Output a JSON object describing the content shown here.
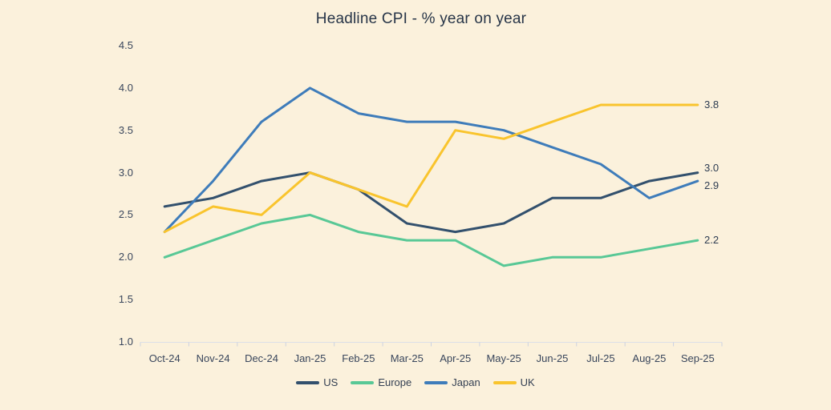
{
  "title": "Headline CPI - % year on year",
  "colors": {
    "background": "#fbf1dc",
    "title_text": "#273548",
    "axis_text": "#39465c",
    "axis_line": "#dcdfe8",
    "tick_line": "#ccd2e0",
    "end_label_text": "#2e3d52",
    "us": "#32506d",
    "europe": "#58c896",
    "japan": "#3e7cba",
    "uk": "#f9c42d"
  },
  "chart_data": {
    "type": "line",
    "title": "Headline CPI - % year on year",
    "x": [
      "Oct-24",
      "Nov-24",
      "Dec-24",
      "Jan-25",
      "Feb-25",
      "Mar-25",
      "Apr-25",
      "May-25",
      "Jun-25",
      "Jul-25",
      "Aug-25",
      "Sep-25"
    ],
    "series": [
      {
        "name": "US",
        "color_key": "us",
        "values": [
          2.6,
          2.7,
          2.9,
          3.0,
          2.8,
          2.4,
          2.3,
          2.4,
          2.7,
          2.7,
          2.9,
          3.0
        ],
        "end_label": "3.0"
      },
      {
        "name": "Europe",
        "color_key": "europe",
        "values": [
          2.0,
          2.2,
          2.4,
          2.5,
          2.3,
          2.2,
          2.2,
          1.9,
          2.0,
          2.0,
          2.1,
          2.2
        ],
        "end_label": "2.2"
      },
      {
        "name": "Japan",
        "color_key": "japan",
        "values": [
          2.3,
          2.9,
          3.6,
          4.0,
          3.7,
          3.6,
          3.6,
          3.5,
          3.3,
          3.1,
          2.7,
          2.9
        ],
        "end_label": "2.9"
      },
      {
        "name": "UK",
        "color_key": "uk",
        "values": [
          2.3,
          2.6,
          2.5,
          3.0,
          2.8,
          2.6,
          3.5,
          3.4,
          3.6,
          3.8,
          3.8,
          3.8
        ],
        "end_label": "3.8"
      }
    ],
    "ylim": [
      1.0,
      4.5
    ],
    "yticks": [
      4.5,
      4.0,
      3.5,
      3.0,
      2.5,
      2.0,
      1.5,
      1.0
    ],
    "grid": false,
    "legend": [
      "US",
      "Europe",
      "Japan",
      "UK"
    ],
    "legend_position": "bottom"
  }
}
